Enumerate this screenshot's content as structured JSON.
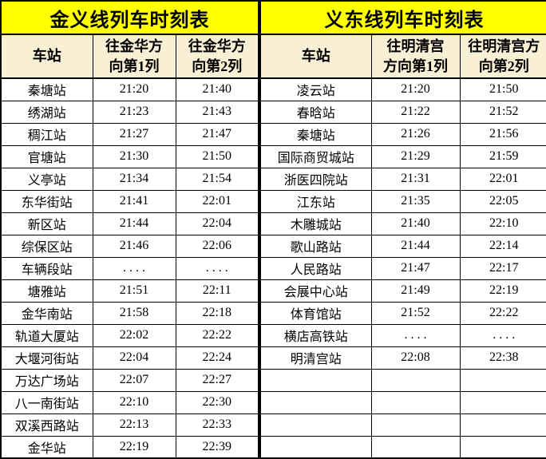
{
  "colors": {
    "title_bg": "#FFFF00",
    "header_bg": "#F8EFD4",
    "border": "#000000",
    "text": "#000000",
    "cell_bg": "#FFFFFF"
  },
  "tables": [
    {
      "title": "金义线列车时刻表",
      "columns": [
        "车站",
        "往金华方\n向第1列",
        "往金华方\n向第2列"
      ],
      "rows": [
        [
          "秦塘站",
          "21:20",
          "21:40"
        ],
        [
          "绣湖站",
          "21:23",
          "21:43"
        ],
        [
          "稠江站",
          "21:27",
          "21:47"
        ],
        [
          "官塘站",
          "21:30",
          "21:50"
        ],
        [
          "义亭站",
          "21:34",
          "21:54"
        ],
        [
          "东华街站",
          "21:41",
          "22:01"
        ],
        [
          "新区站",
          "21:44",
          "22:04"
        ],
        [
          "综保区站",
          "21:46",
          "22:06"
        ],
        [
          "车辆段站",
          ". . . .",
          ". . . ."
        ],
        [
          "塘雅站",
          "21:51",
          "22:11"
        ],
        [
          "金华南站",
          "21:58",
          "22:18"
        ],
        [
          "轨道大厦站",
          "22:02",
          "22:22"
        ],
        [
          "大堰河街站",
          "22:04",
          "22:24"
        ],
        [
          "万达广场站",
          "22:07",
          "22:27"
        ],
        [
          "八一南街站",
          "22:10",
          "22:30"
        ],
        [
          "双溪西路站",
          "22:13",
          "22:33"
        ],
        [
          "金华站",
          "22:19",
          "22:39"
        ]
      ]
    },
    {
      "title": "义东线列车时刻表",
      "columns": [
        "车站",
        "往明清宫\n方向第1列",
        "往明清宫方\n向第2列"
      ],
      "rows": [
        [
          "凌云站",
          "21:20",
          "21:50"
        ],
        [
          "春晗站",
          "21:22",
          "21:52"
        ],
        [
          "秦塘站",
          "21:26",
          "21:56"
        ],
        [
          "国际商贸城站",
          "21:29",
          "21:59"
        ],
        [
          "浙医四院站",
          "21:31",
          "22:01"
        ],
        [
          "江东站",
          "21:35",
          "22:05"
        ],
        [
          "木雕城站",
          "21:40",
          "22:10"
        ],
        [
          "歌山路站",
          "21:44",
          "22:14"
        ],
        [
          "人民路站",
          "21:47",
          "22:17"
        ],
        [
          "会展中心站",
          "21:49",
          "22:19"
        ],
        [
          "体育馆站",
          "21:52",
          "22:22"
        ],
        [
          "横店高铁站",
          ". . . .",
          ". . . ."
        ],
        [
          "明清宫站",
          "22:08",
          "22:38"
        ],
        [
          "",
          "",
          ""
        ],
        [
          "",
          "",
          ""
        ],
        [
          "",
          "",
          ""
        ],
        [
          "",
          "",
          ""
        ]
      ]
    }
  ]
}
